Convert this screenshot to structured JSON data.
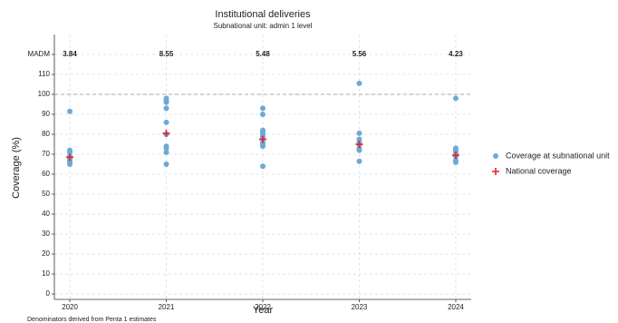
{
  "chart_data": {
    "type": "scatter",
    "title": "Institutional deliveries",
    "subtitle": "Subnational unit: admin 1 level",
    "x_label": "Year",
    "y_label": "Coverage (%)",
    "caption": "Denominators derived from Penta 1 estimates",
    "xlim": [
      2019.84,
      2024.16
    ],
    "xticks": [
      2020,
      2021,
      2022,
      2023,
      2024
    ],
    "ylim": [
      -2.7,
      130
    ],
    "yticks": [
      0,
      10,
      20,
      30,
      40,
      50,
      60,
      70,
      80,
      90,
      100,
      110,
      {
        "value": 120,
        "label": "MADM"
      }
    ],
    "grid": true,
    "reference_line": 100,
    "madm": {
      "x": [
        2020,
        2021,
        2022,
        2023,
        2024
      ],
      "values": [
        3.84,
        8.55,
        5.48,
        5.56,
        4.23
      ]
    },
    "legend": "right",
    "series": [
      {
        "name": "Coverage at subnational unit",
        "marker": "dot",
        "color": "#6ea9d6",
        "x": [
          2020,
          2020,
          2020,
          2020,
          2020,
          2020,
          2020,
          2020,
          2021,
          2021,
          2021,
          2021,
          2021,
          2021,
          2021,
          2021,
          2021,
          2021,
          2022,
          2022,
          2022,
          2022,
          2022,
          2022,
          2022,
          2022,
          2022,
          2022,
          2022,
          2023,
          2023,
          2023,
          2023,
          2023,
          2023,
          2023,
          2023,
          2024,
          2024,
          2024,
          2024,
          2024,
          2024,
          2024,
          2024
        ],
        "values": [
          91.5,
          72,
          71,
          69,
          68,
          67,
          66,
          65,
          98,
          97,
          96,
          93,
          86,
          80,
          74,
          73,
          71,
          65,
          93,
          90,
          82,
          81,
          80,
          79,
          78,
          76,
          75,
          74,
          64,
          105.5,
          80.5,
          77.5,
          76,
          75,
          73,
          72,
          66.5,
          98,
          73,
          72,
          71,
          70,
          69,
          67,
          66
        ]
      },
      {
        "name": "National coverage",
        "marker": "cross",
        "color": "#e8202a",
        "x": [
          2020,
          2021,
          2022,
          2023,
          2024
        ],
        "values": [
          68.5,
          80.5,
          77.5,
          75,
          69.5
        ]
      }
    ]
  }
}
